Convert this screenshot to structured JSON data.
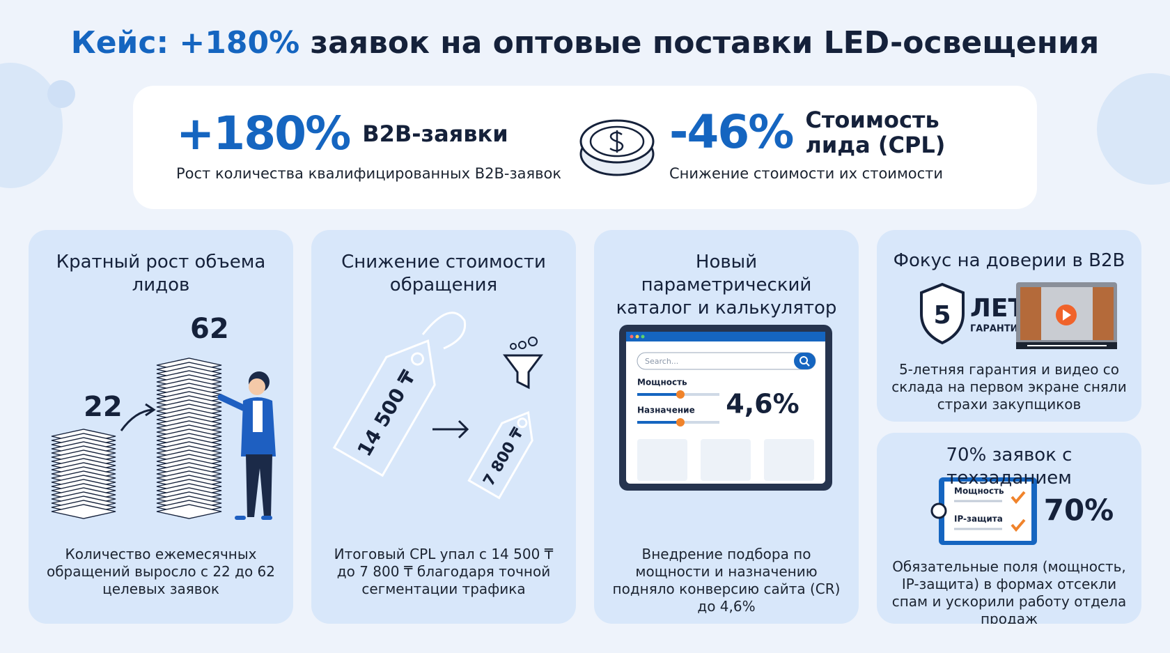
{
  "header": {
    "title_highlight": "Кейс: +180%",
    "title_rest": "заявок на оптовые поставки LED-освещения"
  },
  "kpis": [
    {
      "value": "+180%",
      "label": "B2B-заявки",
      "description": "Рост количества квалифицированных B2B-заявок"
    },
    {
      "value": "-46%",
      "label": "Стоимость лида (CPL)",
      "description": "Снижение стоимости их стоимости"
    }
  ],
  "cards": [
    {
      "title": "Кратный рост объема лидов",
      "before": "22",
      "after": "62",
      "text": "Количество ежемесячных обращений выросло с 22 до 62 целевых заявок"
    },
    {
      "title": "Снижение стоимости обращения",
      "old_price": "14 500 ₸",
      "new_price": "7 800 ₸",
      "text": "Итоговый CPL упал с 14 500 ₸ до 7 800 ₸ благодаря точной сегментации трафика"
    },
    {
      "title": "Новый параметрический каталог и калькулятор",
      "search_placeholder": "Search...",
      "filters": [
        "Мощность",
        "Назначение"
      ],
      "metric": "4,6%",
      "text": "Внедрение подбора по мощности и назначению подняло конверсию сайта (CR) до 4,6%"
    },
    {
      "title": "Фокус на доверии в B2B",
      "badge_number": "5",
      "badge_title": "ЛЕТ",
      "badge_subtitle": "ГАРАНТИЯ",
      "text": "5-летняя гарантия и видео со склада на первом экране сняли страхи закупщиков"
    },
    {
      "title": "70% заявок с техзаданием",
      "fields": [
        "Мощность",
        "IP-защита"
      ],
      "metric": "70%",
      "text": "Обязательные поля (мощность, IP-защита) в формах отсекли спам и ускорили работу отдела продаж"
    }
  ]
}
